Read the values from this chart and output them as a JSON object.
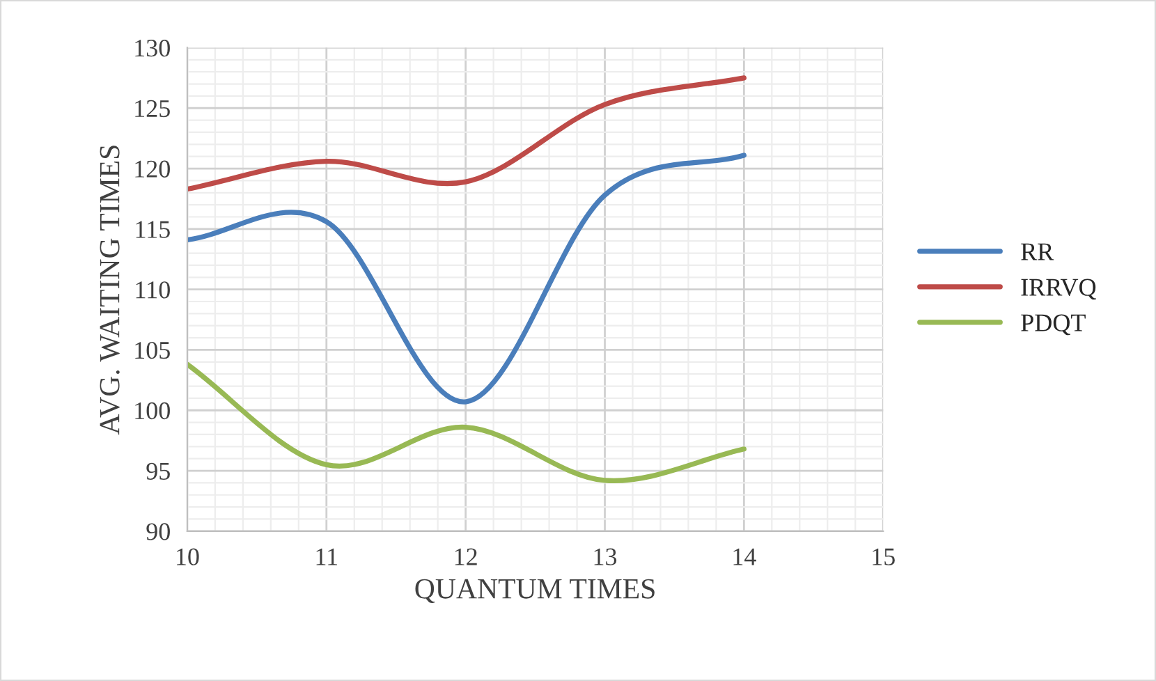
{
  "chart_data": {
    "type": "line",
    "xlabel": "QUANTUM TIMES",
    "ylabel": "AVG. WAITING TIMES",
    "x": [
      10,
      11,
      12,
      13,
      14
    ],
    "series": [
      {
        "name": "RR",
        "color": "#4a7ebb",
        "values": [
          114.1,
          115.6,
          100.7,
          117.8,
          121.1
        ]
      },
      {
        "name": "IRRVQ",
        "color": "#be4b48",
        "values": [
          118.3,
          120.6,
          118.9,
          125.3,
          127.5
        ]
      },
      {
        "name": "PDQT",
        "color": "#98b954",
        "values": [
          103.8,
          95.5,
          98.6,
          94.2,
          96.8
        ]
      }
    ],
    "xlim": [
      10,
      15
    ],
    "xticks": [
      10,
      11,
      12,
      13,
      14,
      15
    ],
    "ylim": [
      90,
      130
    ],
    "yticks": [
      90,
      95,
      100,
      105,
      110,
      115,
      120,
      125,
      130
    ],
    "grid": true,
    "legend": "right",
    "marker": "none",
    "line_style": "solid"
  }
}
